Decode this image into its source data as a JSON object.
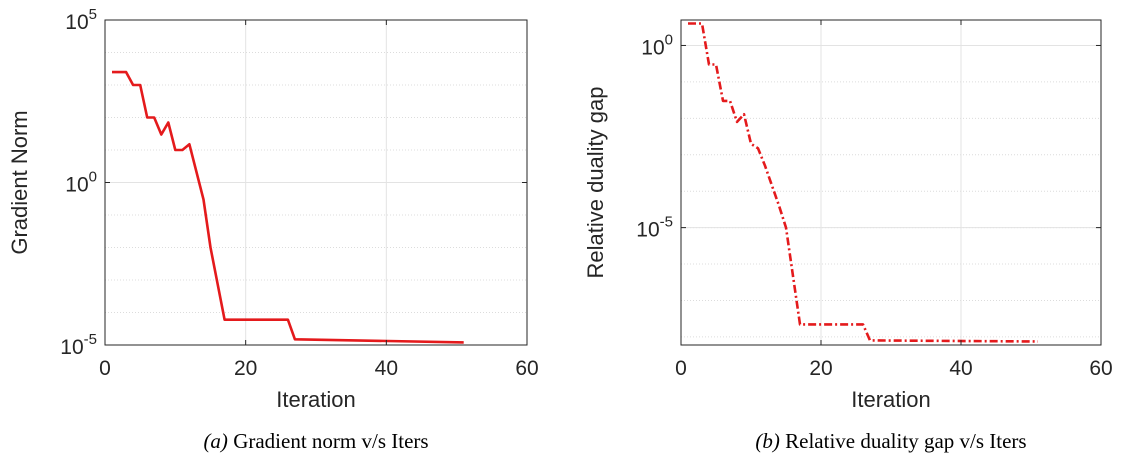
{
  "chart_data": [
    {
      "type": "line",
      "title": "",
      "xlabel": "Iteration",
      "ylabel": "Gradient Norm",
      "yscale": "log",
      "xlim": [
        0,
        60
      ],
      "ylim": [
        1e-05,
        100000.0
      ],
      "x_ticks": [
        0,
        20,
        40,
        60
      ],
      "y_ticks": [
        1e-05,
        1,
        100000.0
      ],
      "y_tick_labels": [
        {
          "base": "10",
          "exp": "-5"
        },
        {
          "base": "10",
          "exp": "0"
        },
        {
          "base": "10",
          "exp": "5"
        }
      ],
      "grid": true,
      "minor_grid": true,
      "series": [
        {
          "color": "#e41a1c",
          "line_style": "solid",
          "x": [
            1,
            3,
            4,
            5,
            6,
            7,
            8,
            9,
            10,
            11,
            12,
            14,
            15,
            17,
            26,
            27,
            51
          ],
          "y": [
            2500,
            2500,
            1000,
            1000,
            100,
            100,
            30,
            70,
            10,
            10,
            15,
            0.3,
            0.01,
            6e-05,
            6e-05,
            1.5e-05,
            1.2e-05
          ]
        }
      ],
      "caption": {
        "label": "(a)",
        "text": " Gradient norm v/s Iters"
      }
    },
    {
      "type": "line",
      "title": "",
      "xlabel": "Iteration",
      "ylabel": "Relative duality gap",
      "yscale": "log",
      "xlim": [
        0,
        60
      ],
      "ylim": [
        6e-09,
        5
      ],
      "x_ticks": [
        0,
        20,
        40,
        60
      ],
      "y_ticks": [
        1e-05,
        1
      ],
      "y_tick_labels": [
        {
          "base": "10",
          "exp": "-5"
        },
        {
          "base": "10",
          "exp": "0"
        }
      ],
      "grid": true,
      "minor_grid": true,
      "series": [
        {
          "color": "#e41a1c",
          "line_style": "dash-dot",
          "x": [
            1,
            3,
            4,
            5,
            6,
            7,
            8,
            9,
            10,
            11,
            12,
            14,
            15,
            17,
            26,
            27,
            51
          ],
          "y": [
            4,
            4,
            0.3,
            0.3,
            0.03,
            0.03,
            0.008,
            0.013,
            0.002,
            0.0015,
            0.0005,
            4e-05,
            1e-05,
            2.2e-08,
            2.2e-08,
            8e-09,
            7.5e-09
          ]
        }
      ],
      "caption": {
        "label": "(b)",
        "text": " Relative duality gap v/s Iters"
      }
    }
  ]
}
